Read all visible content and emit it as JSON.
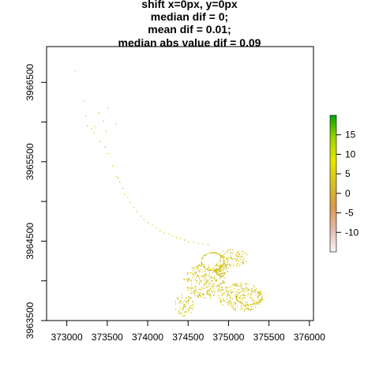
{
  "title_lines": [
    "shift x=0px, y=0px",
    "median dif = 0;",
    "mean dif = 0.01;",
    "median abs value dif = 0.09"
  ],
  "chart_data": {
    "type": "scatter",
    "description_kind": "raster map of difference values",
    "xlim": [
      372750,
      376050
    ],
    "ylim": [
      3963500,
      3966950
    ],
    "x_ticks": [
      373000,
      373500,
      374000,
      374500,
      375000,
      375500,
      376000
    ],
    "x_tick_labels": [
      "373000",
      "373500",
      "374000",
      "374500",
      "375000",
      "375500",
      "376000"
    ],
    "y_ticks": [
      3963500,
      3964500,
      3965500,
      3966500
    ],
    "y_tick_labels": [
      "3963500",
      "3964500",
      "3965500",
      "3966500"
    ],
    "y_minor_ticks": [
      3964000,
      3965000,
      3966000
    ],
    "legend": {
      "position": "right",
      "range": [
        -15,
        20
      ],
      "ticks": [
        15,
        10,
        5,
        0,
        -5,
        -10
      ],
      "tick_labels": [
        "15",
        "10",
        "5",
        "0",
        "-5",
        "-10"
      ],
      "gradient_colors": [
        "#f5f5f5",
        "#e5b8a8",
        "#d99a4a",
        "#d8c020",
        "#e6e600",
        "#9fd400",
        "#00a600"
      ]
    },
    "point_color": "#d4c400",
    "point_color_alt": "#bfb000",
    "series": [
      {
        "values": [
          [
            373100,
            3966650
          ],
          [
            373200,
            3966270
          ],
          [
            373230,
            3966080
          ],
          [
            373250,
            3965960
          ],
          [
            373300,
            3965920
          ],
          [
            373330,
            3965870
          ],
          [
            373340,
            3965950
          ],
          [
            373390,
            3966120
          ],
          [
            373410,
            3965760
          ],
          [
            373450,
            3966020
          ],
          [
            373470,
            3965690
          ],
          [
            373480,
            3965890
          ],
          [
            373500,
            3966180
          ],
          [
            373510,
            3965610
          ],
          [
            373560,
            3965450
          ],
          [
            373600,
            3965980
          ],
          [
            373610,
            3965320
          ],
          [
            373630,
            3965300
          ],
          [
            373650,
            3965250
          ],
          [
            373690,
            3965170
          ],
          [
            373710,
            3965100
          ],
          [
            373750,
            3965060
          ],
          [
            373780,
            3964990
          ],
          [
            373820,
            3964930
          ],
          [
            373860,
            3964880
          ],
          [
            373910,
            3964820
          ],
          [
            373950,
            3964780
          ],
          [
            374000,
            3964740
          ],
          [
            374050,
            3964710
          ],
          [
            374100,
            3964670
          ],
          [
            374150,
            3964640
          ],
          [
            374200,
            3964610
          ],
          [
            374260,
            3964600
          ],
          [
            374300,
            3964570
          ],
          [
            374350,
            3964550
          ],
          [
            374400,
            3964540
          ],
          [
            374450,
            3964520
          ],
          [
            374500,
            3964500
          ],
          [
            374560,
            3964490
          ],
          [
            374620,
            3964480
          ],
          [
            374680,
            3964470
          ],
          [
            374740,
            3964460
          ]
        ]
      }
    ]
  }
}
